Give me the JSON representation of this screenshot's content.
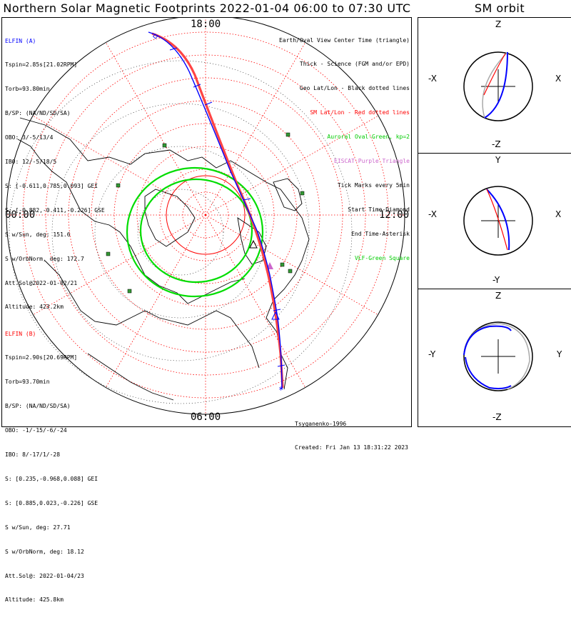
{
  "header": {
    "title": "Northern Solar Magnetic Footprints 2022-01-04 06:00 to 07:30 UTC",
    "orbit_title": "SM orbit"
  },
  "clock": {
    "top": "18:00",
    "left": "00:00",
    "right": "12:00",
    "bottom": "06:00"
  },
  "elfin_a": {
    "name": "ELFIN (A)",
    "color": "#0000ff",
    "lines": [
      "Tspin=2.85s[21.02RPM]",
      "Torb=93.80min",
      "B/SP: (NA/ND/SD/SA)",
      "OBO: 3/-5/13/4",
      "IBO: 12/-5/18/5",
      "S: [-0.611,0.785,0.093] GEI",
      "S: [-0.882,-0.411,-0.226] GSE",
      "S w/Sun, deg: 151.6",
      "S w/OrbNorm, deg: 172.7",
      "Att.Sol@2022-01-02/21",
      "Altitude: 423.2km"
    ]
  },
  "elfin_b": {
    "name": "ELFIN (B)",
    "color": "#ff0000",
    "lines": [
      "Tspin=2.90s[20.69RPM]",
      "Torb=93.70min",
      "B/SP: (NA/ND/SD/SA)",
      "OBO: -1/-15/-6/-24",
      "IBO: 8/-17/1/-28",
      "S: [0.235,-0.968,0.088] GEI",
      "S: [0.885,0.023,-0.226] GSE",
      "S w/Sun, deg: 27.71",
      "S w/OrbNorm, deg: 18.12",
      "Att.Sol@: 2022-01-04/23",
      "Altitude: 425.8km"
    ]
  },
  "legend": [
    {
      "text": "Earth/Oval View Center Time (triangle)",
      "color": "#000000"
    },
    {
      "text": "Thick - Science (FGM and/or EPD)",
      "color": "#000000"
    },
    {
      "text": "Geo Lat/Lon - Black dotted lines",
      "color": "#000000"
    },
    {
      "text": "SM Lat/Lon - Red dotted lines",
      "color": "#ff0000"
    },
    {
      "text": "Auroral Oval-Green, kp=2",
      "color": "#00cc00"
    },
    {
      "text": "EISCAT-Purple Triangle",
      "color": "#cc66cc"
    },
    {
      "text": "Tick Marks every 5min",
      "color": "#000000"
    },
    {
      "text": "Start Time-Diamond",
      "color": "#000000"
    },
    {
      "text": "End Time-Asterisk",
      "color": "#000000"
    },
    {
      "text": "VLF-Green Square",
      "color": "#00cc00"
    }
  ],
  "footer": {
    "author": "Tsyganenko-1996",
    "created": "Created: Fri Jan 13 18:31:22 2023"
  },
  "orbit_panels": [
    {
      "top": "Z",
      "bottom": "-Z",
      "left": "-X",
      "right": "X"
    },
    {
      "top": "Y",
      "bottom": "-Y",
      "left": "-X",
      "right": "X"
    },
    {
      "top": "Z",
      "bottom": "-Z",
      "left": "-Y",
      "right": "Y"
    }
  ]
}
